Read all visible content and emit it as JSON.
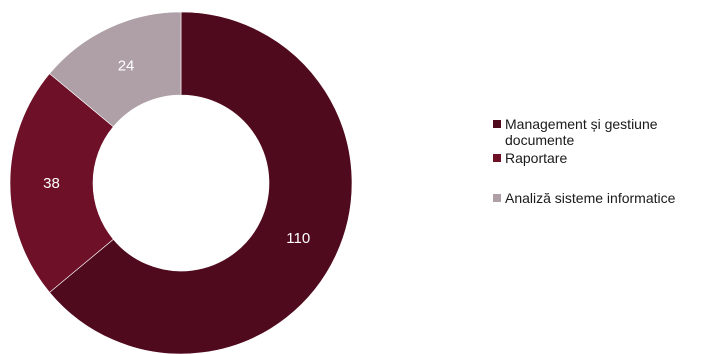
{
  "chart_data": {
    "type": "donut",
    "title": "",
    "series": [
      {
        "name": "Management și gestiune documente",
        "value": 110,
        "color": "#4f0a1d"
      },
      {
        "name": "Raportare",
        "value": 38,
        "color": "#6d1028"
      },
      {
        "name": "Analiză sisteme informatice",
        "value": 24,
        "color": "#aea0a6"
      }
    ],
    "legend_position": "right",
    "data_label_color": "#ffffff"
  }
}
